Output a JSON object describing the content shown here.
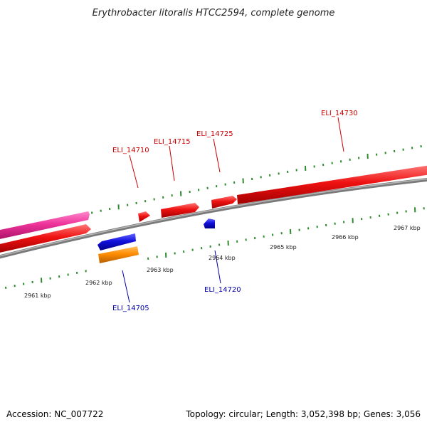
{
  "title": "Erythrobacter litoralis HTCC2594, complete genome",
  "footer": {
    "accession": "Accession: NC_007722",
    "summary": "Topology: circular; Length: 3,052,398 bp; Genes: 3,056"
  },
  "colors": {
    "backbone": "#8c8c8c",
    "forward_gene": "#ee1111",
    "reverse_gene": "#1111dd",
    "pink_feature": "#ee3399",
    "orange_feature": "#ff8c00",
    "tick": "#2e8b2e",
    "forward_label": "#cc0000",
    "reverse_label": "#0000aa"
  },
  "scale": {
    "unit": "kbp",
    "labels": [
      {
        "kbp": 2961,
        "text": "2961 kbp"
      },
      {
        "kbp": 2962,
        "text": "2962 kbp"
      },
      {
        "kbp": 2963,
        "text": "2963 kbp"
      },
      {
        "kbp": 2964,
        "text": "2964 kbp"
      },
      {
        "kbp": 2965,
        "text": "2965 kbp"
      },
      {
        "kbp": 2966,
        "text": "2966 kbp"
      },
      {
        "kbp": 2967,
        "text": "2967 kbp"
      }
    ]
  },
  "genes": [
    {
      "label": "ELI_14705",
      "strand": "reverse"
    },
    {
      "label": "ELI_14710",
      "strand": "forward"
    },
    {
      "label": "ELI_14715",
      "strand": "forward"
    },
    {
      "label": "ELI_14720",
      "strand": "reverse"
    },
    {
      "label": "ELI_14725",
      "strand": "forward"
    },
    {
      "label": "ELI_14730",
      "strand": "forward"
    }
  ]
}
